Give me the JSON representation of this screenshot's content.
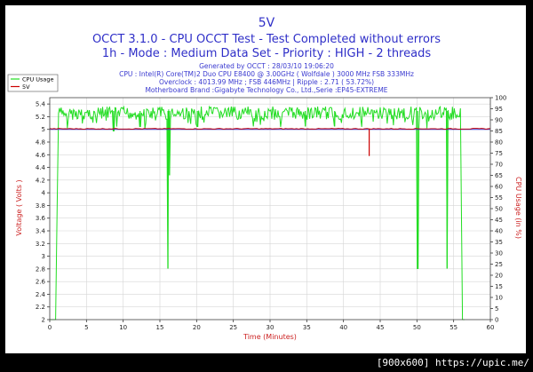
{
  "chart_data": {
    "type": "line",
    "title": "5V",
    "subtitle_lines": [
      "OCCT 3.1.0 - CPU OCCT Test - Test Completed without errors",
      "1h - Mode : Medium Data Set - Priority : HIGH - 2 threads"
    ],
    "info_lines": [
      "Generated by OCCT : 28/03/10 19:06:20",
      "CPU : Intel(R) Core(TM)2 Duo CPU E8400 @ 3.00GHz ( Wolfdale ) 3000 MHz FSB 333MHz",
      "Overclock : 4013.99 MHz ; FSB 446MHz | Ripple : 2.71 ( 53.72%)",
      "Motherboard Brand :Gigabyte Technology Co., Ltd.,Serie :EP45-EXTREME"
    ],
    "xlabel": "Time (Minutes)",
    "ylabel_left": "Voltage ( Volts )",
    "ylabel_right": "CPU Usage (in %)",
    "xlim": [
      0,
      60
    ],
    "ylim_left": [
      2,
      5.5
    ],
    "ylim_right": [
      0,
      100
    ],
    "x_ticks": [
      "0",
      "5",
      "10",
      "15",
      "20",
      "25",
      "30",
      "35",
      "40",
      "45",
      "50",
      "55",
      "60"
    ],
    "y_ticks_left": [
      "2",
      "2.2",
      "2.4",
      "2.6",
      "2.8",
      "3",
      "3.2",
      "3.4",
      "3.6",
      "3.8",
      "4",
      "4.2",
      "4.4",
      "4.6",
      "4.8",
      "5",
      "5.2",
      "5.4"
    ],
    "y_ticks_right": [
      "0",
      "5",
      "10",
      "15",
      "20",
      "25",
      "30",
      "35",
      "40",
      "45",
      "50",
      "55",
      "60",
      "65",
      "70",
      "75",
      "80",
      "85",
      "90",
      "95",
      "100"
    ],
    "grid": true,
    "legend_position": "top-left",
    "series": [
      {
        "name": "CPU Usage",
        "axis": "right",
        "color": "#22dd22",
        "baseline": 96,
        "x": [
          0,
          0.8,
          1.0,
          1.2,
          56,
          56.2,
          56.5
        ],
        "values": [
          0,
          0,
          50,
          94,
          94,
          0,
          0
        ],
        "dips": [
          {
            "x": 8.7,
            "value": 85
          },
          {
            "x": 12.3,
            "value": 87
          },
          {
            "x": 16.1,
            "value": 23
          },
          {
            "x": 16.3,
            "value": 65
          },
          {
            "x": 20.1,
            "value": 87
          },
          {
            "x": 34.8,
            "value": 87
          },
          {
            "x": 38.8,
            "value": 87
          },
          {
            "x": 50.1,
            "value": 23
          },
          {
            "x": 54.1,
            "value": 23
          }
        ]
      },
      {
        "name": "5V",
        "axis": "left",
        "color": "#cc0000",
        "baseline": 5.01,
        "dips": [
          {
            "x": 43.5,
            "value": 4.58
          }
        ]
      }
    ],
    "reference_line": {
      "axis": "left",
      "value": 5.0,
      "color": "#3333cc"
    }
  },
  "footer": {
    "text": "[900x600] https://upic.me/"
  }
}
